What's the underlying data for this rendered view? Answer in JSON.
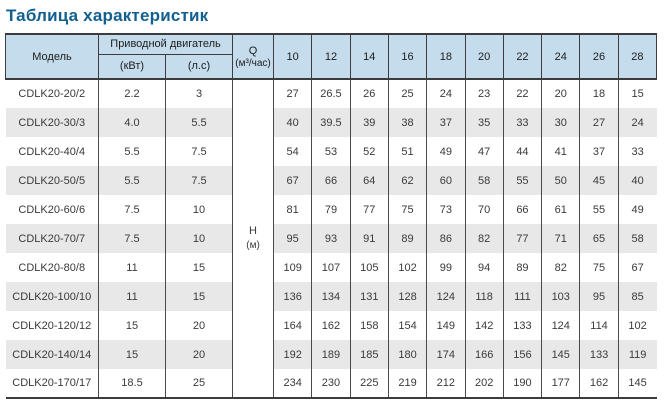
{
  "page": {
    "title": "Таблица характеристик"
  },
  "colors": {
    "title_accent": "#12608f",
    "header_bg": "#c5dcec",
    "row_alt_bg": "#e8e8e8",
    "border_dark": "#3c3c3c"
  },
  "table": {
    "header": {
      "model": "Модель",
      "motor_group": "Приводной двигатель",
      "motor_kw": "(кВт)",
      "motor_hp": "(л.с)",
      "q_label": "Q",
      "q_unit": "(м³/час)",
      "h_label": "Н",
      "h_unit": "(м)",
      "flow_values": [
        "10",
        "12",
        "14",
        "16",
        "18",
        "20",
        "22",
        "24",
        "26",
        "28"
      ]
    },
    "rows": [
      {
        "model": "CDLK20-20/2",
        "kw": "2.2",
        "hp": "3",
        "heads": [
          "27",
          "26.5",
          "26",
          "25",
          "24",
          "23",
          "22",
          "20",
          "18",
          "15"
        ]
      },
      {
        "model": "CDLK20-30/3",
        "kw": "4.0",
        "hp": "5.5",
        "heads": [
          "40",
          "39.5",
          "39",
          "38",
          "37",
          "35",
          "33",
          "30",
          "27",
          "24"
        ]
      },
      {
        "model": "CDLK20-40/4",
        "kw": "5.5",
        "hp": "7.5",
        "heads": [
          "54",
          "53",
          "52",
          "51",
          "49",
          "47",
          "44",
          "41",
          "37",
          "33"
        ]
      },
      {
        "model": "CDLK20-50/5",
        "kw": "5.5",
        "hp": "7.5",
        "heads": [
          "67",
          "66",
          "64",
          "62",
          "60",
          "58",
          "55",
          "50",
          "45",
          "40"
        ]
      },
      {
        "model": "CDLK20-60/6",
        "kw": "7.5",
        "hp": "10",
        "heads": [
          "81",
          "79",
          "77",
          "75",
          "73",
          "70",
          "66",
          "61",
          "55",
          "49"
        ]
      },
      {
        "model": "CDLK20-70/7",
        "kw": "7.5",
        "hp": "10",
        "heads": [
          "95",
          "93",
          "91",
          "89",
          "86",
          "82",
          "77",
          "71",
          "65",
          "58"
        ]
      },
      {
        "model": "CDLK20-80/8",
        "kw": "11",
        "hp": "15",
        "heads": [
          "109",
          "107",
          "105",
          "102",
          "99",
          "94",
          "89",
          "82",
          "75",
          "67"
        ]
      },
      {
        "model": "CDLK20-100/10",
        "kw": "11",
        "hp": "15",
        "heads": [
          "136",
          "134",
          "131",
          "128",
          "124",
          "118",
          "111",
          "103",
          "95",
          "85"
        ]
      },
      {
        "model": "CDLK20-120/12",
        "kw": "15",
        "hp": "20",
        "heads": [
          "164",
          "162",
          "158",
          "154",
          "149",
          "142",
          "133",
          "124",
          "114",
          "102"
        ]
      },
      {
        "model": "CDLK20-140/14",
        "kw": "15",
        "hp": "20",
        "heads": [
          "192",
          "189",
          "185",
          "180",
          "174",
          "166",
          "156",
          "145",
          "133",
          "119"
        ]
      },
      {
        "model": "CDLK20-170/17",
        "kw": "18.5",
        "hp": "25",
        "heads": [
          "234",
          "230",
          "225",
          "219",
          "212",
          "202",
          "190",
          "177",
          "162",
          "145"
        ]
      }
    ]
  },
  "chart_data": {
    "type": "table",
    "title": "Таблица характеристик",
    "x_label": "Q (м³/час)",
    "y_label": "Н (м)",
    "q_values": [
      10,
      12,
      14,
      16,
      18,
      20,
      22,
      24,
      26,
      28
    ],
    "series": [
      {
        "model": "CDLK20-20/2",
        "power_kw": 2.2,
        "power_hp": 3,
        "head_m": [
          27,
          26.5,
          26,
          25,
          24,
          23,
          22,
          20,
          18,
          15
        ]
      },
      {
        "model": "CDLK20-30/3",
        "power_kw": 4.0,
        "power_hp": 5.5,
        "head_m": [
          40,
          39.5,
          39,
          38,
          37,
          35,
          33,
          30,
          27,
          24
        ]
      },
      {
        "model": "CDLK20-40/4",
        "power_kw": 5.5,
        "power_hp": 7.5,
        "head_m": [
          54,
          53,
          52,
          51,
          49,
          47,
          44,
          41,
          37,
          33
        ]
      },
      {
        "model": "CDLK20-50/5",
        "power_kw": 5.5,
        "power_hp": 7.5,
        "head_m": [
          67,
          66,
          64,
          62,
          60,
          58,
          55,
          50,
          45,
          40
        ]
      },
      {
        "model": "CDLK20-60/6",
        "power_kw": 7.5,
        "power_hp": 10,
        "head_m": [
          81,
          79,
          77,
          75,
          73,
          70,
          66,
          61,
          55,
          49
        ]
      },
      {
        "model": "CDLK20-70/7",
        "power_kw": 7.5,
        "power_hp": 10,
        "head_m": [
          95,
          93,
          91,
          89,
          86,
          82,
          77,
          71,
          65,
          58
        ]
      },
      {
        "model": "CDLK20-80/8",
        "power_kw": 11,
        "power_hp": 15,
        "head_m": [
          109,
          107,
          105,
          102,
          99,
          94,
          89,
          82,
          75,
          67
        ]
      },
      {
        "model": "CDLK20-100/10",
        "power_kw": 11,
        "power_hp": 15,
        "head_m": [
          136,
          134,
          131,
          128,
          124,
          118,
          111,
          103,
          95,
          85
        ]
      },
      {
        "model": "CDLK20-120/12",
        "power_kw": 15,
        "power_hp": 20,
        "head_m": [
          164,
          162,
          158,
          154,
          149,
          142,
          133,
          124,
          114,
          102
        ]
      },
      {
        "model": "CDLK20-140/14",
        "power_kw": 15,
        "power_hp": 20,
        "head_m": [
          192,
          189,
          185,
          180,
          174,
          166,
          156,
          145,
          133,
          119
        ]
      },
      {
        "model": "CDLK20-170/17",
        "power_kw": 18.5,
        "power_hp": 25,
        "head_m": [
          234,
          230,
          225,
          219,
          212,
          202,
          190,
          177,
          162,
          145
        ]
      }
    ]
  }
}
